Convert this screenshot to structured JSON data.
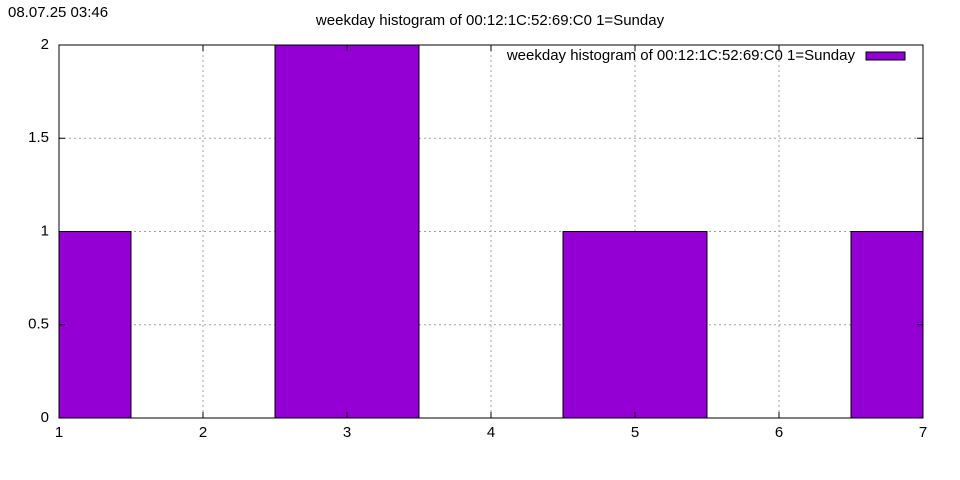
{
  "timestamp": "08.07.25 03:46",
  "chart_data": {
    "type": "histogram",
    "title": "weekday histogram of 00:12:1C:52:69:C0 1=Sunday",
    "bins": [
      0.5,
      1.5,
      2.5,
      3.5,
      4.5,
      5.5,
      6.5,
      7.5
    ],
    "series": [
      {
        "name": "weekday histogram of 00:12:1C:52:69:C0 1=Sunday",
        "color": "#9400d3",
        "values": [
          1,
          0,
          2,
          0,
          1,
          0,
          1
        ]
      }
    ],
    "xlim": [
      1,
      7
    ],
    "xticks": [
      1,
      2,
      3,
      4,
      5,
      6,
      7
    ],
    "ylim": [
      0,
      2
    ],
    "yticks": [
      0,
      0.5,
      1,
      1.5,
      2
    ],
    "grid": true,
    "legend": "top-right"
  }
}
